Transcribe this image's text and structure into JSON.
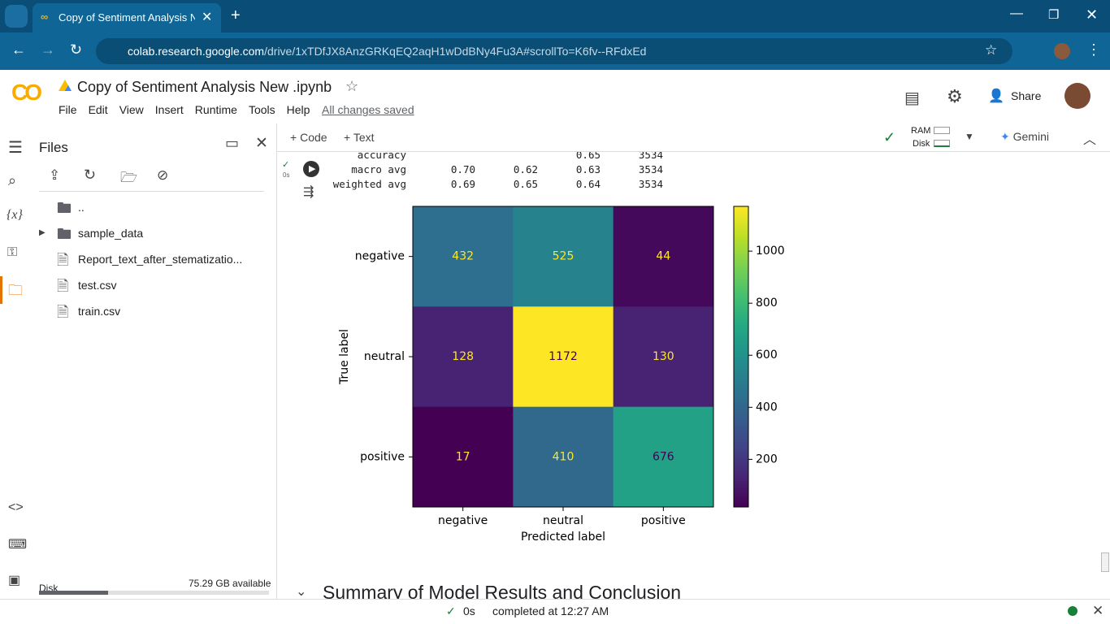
{
  "browser": {
    "tab_title": "Copy of Sentiment Analysis Ne",
    "url_host": "colab.research.google.com",
    "url_path": "/drive/1xTDfJX8AnzGRKqEQ2aqH1wDdBNy4Fu3A#scrollTo=K6fv--RFdxEd"
  },
  "header": {
    "title": "Copy of Sentiment Analysis New .ipynb",
    "menu": [
      "File",
      "Edit",
      "View",
      "Insert",
      "Runtime",
      "Tools",
      "Help"
    ],
    "save_status": "All changes saved",
    "share": "Share"
  },
  "toolbar": {
    "code": "Code",
    "text": "Text",
    "ram": "RAM",
    "disk": "Disk",
    "gemini": "Gemini"
  },
  "sidebar": {
    "title": "Files",
    "items": [
      "..",
      "sample_data",
      "Report_text_after_stematizatio...",
      "test.csv",
      "train.csv"
    ],
    "disk_label": "Disk",
    "disk_available": "75.29 GB available"
  },
  "cell": {
    "exec_time": "0s",
    "report_rows": [
      {
        "label": "accuracy",
        "f1": "0.65",
        "support": "3534"
      },
      {
        "label": "macro avg",
        "precision": "0.70",
        "recall": "0.62",
        "f1": "0.63",
        "support": "3534"
      },
      {
        "label": "weighted avg",
        "precision": "0.69",
        "recall": "0.65",
        "f1": "0.64",
        "support": "3534"
      }
    ]
  },
  "heatmap": {
    "type": "heatmap",
    "x_label": "Predicted label",
    "y_label": "True label",
    "x_categories": [
      "negative",
      "neutral",
      "positive"
    ],
    "y_categories": [
      "negative",
      "neutral",
      "positive"
    ],
    "values": [
      [
        432,
        525,
        44
      ],
      [
        128,
        1172,
        130
      ],
      [
        17,
        410,
        676
      ]
    ],
    "clim": [
      17,
      1172
    ],
    "colorbar_ticks": [
      200,
      400,
      600,
      800,
      1000
    ],
    "colormap": "viridis"
  },
  "next_heading": "Summary of Model Results and Conclusion",
  "status": {
    "time": "0s",
    "completed": "completed at 12:27 AM"
  }
}
